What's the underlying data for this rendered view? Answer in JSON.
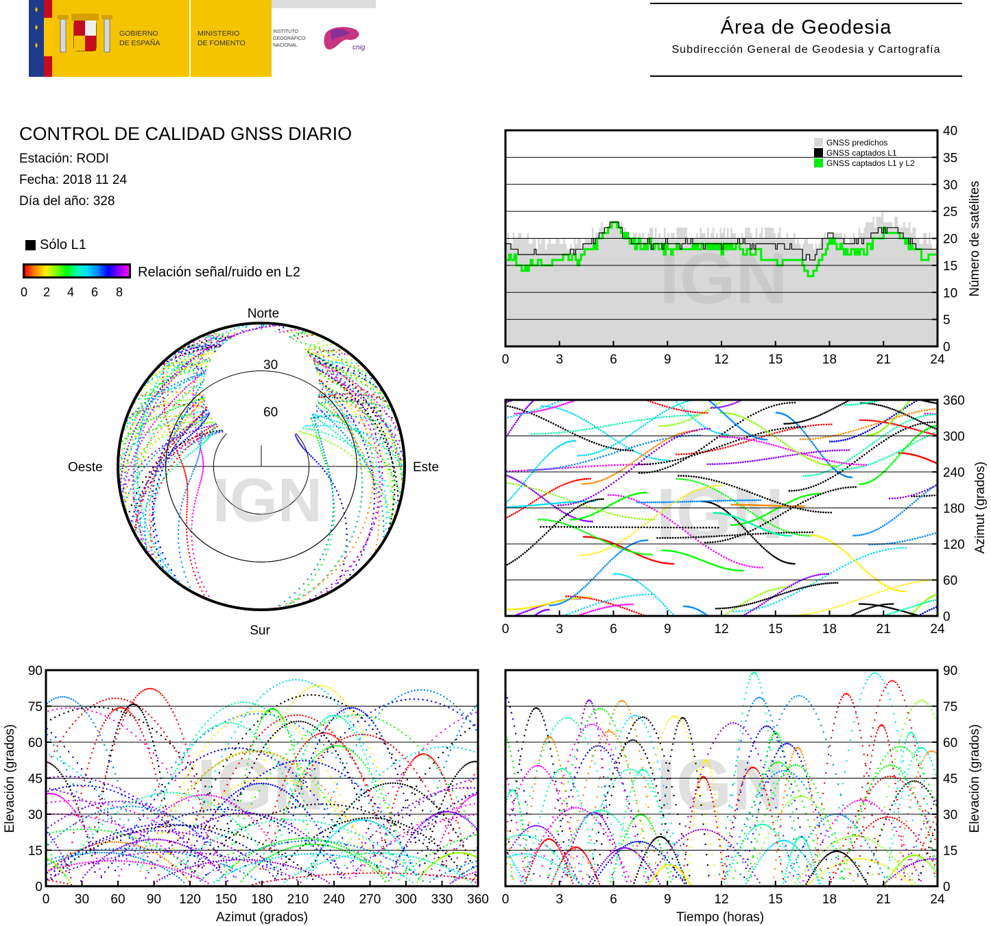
{
  "header": {
    "gobierno": "GOBIERNO DE ESPAÑA",
    "gobierno_line1": "GOBIERNO",
    "gobierno_line2": "DE ESPAÑA",
    "ministerio_line1": "MINISTERIO",
    "ministerio_line2": "DE FOMENTO",
    "ign_line1": "INSTITUTO",
    "ign_line2": "GEOGRÁFICO",
    "ign_line3": "NACIONAL",
    "cnig": "cnig",
    "area_title": "Área de Geodesia",
    "area_subtitle": "Subdirección General de Geodesia y Cartografía"
  },
  "info": {
    "title": "CONTROL DE CALIDAD GNSS DIARIO",
    "station": "Estación: RODI",
    "date": "Fecha: 2018 11 24",
    "doy": "Día del año: 328"
  },
  "legend": {
    "l1_only": "Sólo L1",
    "snr_label": "Relación señal/ruido en L2",
    "snr_ticks": [
      "0",
      "2",
      "4",
      "6",
      "8"
    ]
  },
  "watermark": "IGN",
  "colors": {
    "predicted": "#d8d8d8",
    "l1": "#000000",
    "l1l2": "#00ee00",
    "snr_scale": [
      "#ff0000",
      "#ff8800",
      "#ffee00",
      "#88ff00",
      "#00ff00",
      "#00ffaa",
      "#00ddff",
      "#0088ff",
      "#0000ff",
      "#8800ff",
      "#ff00ff"
    ]
  },
  "chart_data": [
    {
      "type": "area",
      "id": "satellite-count",
      "ylabel": "Número de satélites",
      "xlim": [
        0,
        24
      ],
      "ylim": [
        0,
        40
      ],
      "xticks": [
        "0",
        "3",
        "6",
        "9",
        "12",
        "15",
        "18",
        "21",
        "24"
      ],
      "yticks": [
        "0",
        "5",
        "10",
        "15",
        "20",
        "25",
        "30",
        "35",
        "40"
      ],
      "grid": true,
      "legend_position": "top-right",
      "x": [
        0,
        1,
        2,
        3,
        4,
        5,
        6,
        7,
        8,
        9,
        10,
        11,
        12,
        13,
        14,
        15,
        16,
        17,
        18,
        19,
        20,
        21,
        22,
        23,
        24
      ],
      "series": [
        {
          "name": "GNSS predichos",
          "values": [
            20,
            20,
            19,
            19,
            19,
            21,
            23,
            20,
            21,
            21,
            21,
            21,
            21,
            21,
            21,
            21,
            20,
            18,
            21,
            20,
            22,
            24,
            23,
            20,
            19
          ]
        },
        {
          "name": "GNSS captados L1",
          "values": [
            19,
            17,
            17,
            17,
            18,
            20,
            23,
            19,
            19,
            19,
            19,
            19,
            19,
            19,
            19,
            19,
            18,
            16,
            21,
            19,
            20,
            22,
            21,
            18,
            18
          ]
        },
        {
          "name": "GNSS captados L1 y L2",
          "values": [
            17,
            15,
            15,
            16,
            16,
            19,
            23,
            19,
            19,
            18,
            18,
            19,
            18,
            18,
            17,
            16,
            16,
            13,
            20,
            17,
            18,
            21,
            20,
            17,
            16
          ]
        }
      ]
    },
    {
      "type": "scatter",
      "id": "azimuth-vs-time",
      "ylabel": "Azimut (grados)",
      "xlim": [
        0,
        24
      ],
      "ylim": [
        0,
        360
      ],
      "xticks": [
        "0",
        "3",
        "6",
        "9",
        "12",
        "15",
        "18",
        "21",
        "24"
      ],
      "yticks": [
        "0",
        "60",
        "120",
        "180",
        "240",
        "300",
        "360"
      ],
      "grid": true
    },
    {
      "type": "scatter",
      "id": "skyplot",
      "labels": {
        "north": "Norte",
        "south": "Sur",
        "east": "Este",
        "west": "Oeste"
      },
      "elevation_rings": [
        "30",
        "60"
      ]
    },
    {
      "type": "scatter",
      "id": "elevation-vs-azimuth",
      "xlabel": "Azimut (grados)",
      "ylabel": "Elevación (grados)",
      "xlim": [
        0,
        360
      ],
      "ylim": [
        0,
        90
      ],
      "xticks": [
        "0",
        "30",
        "60",
        "90",
        "120",
        "150",
        "180",
        "210",
        "240",
        "270",
        "300",
        "330",
        "360"
      ],
      "yticks": [
        "0",
        "15",
        "30",
        "45",
        "60",
        "75",
        "90"
      ],
      "grid": true
    },
    {
      "type": "scatter",
      "id": "elevation-vs-time",
      "xlabel": "Tiempo (horas)",
      "ylabel": "Elevación (grados)",
      "xlim": [
        0,
        24
      ],
      "ylim": [
        0,
        90
      ],
      "xticks": [
        "0",
        "3",
        "6",
        "9",
        "12",
        "15",
        "18",
        "21",
        "24"
      ],
      "yticks": [
        "0",
        "15",
        "30",
        "45",
        "60",
        "75",
        "90"
      ],
      "grid": true
    }
  ]
}
